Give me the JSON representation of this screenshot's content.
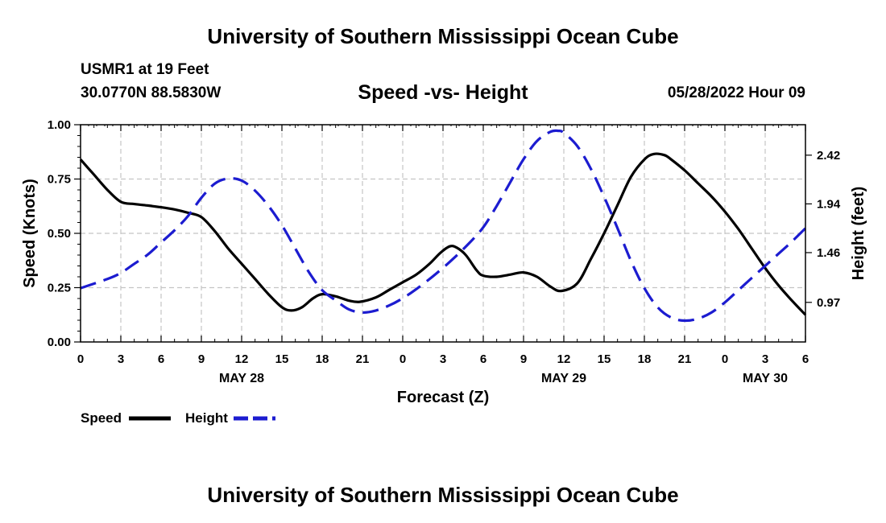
{
  "header": {
    "title": "University of Southern Mississippi Ocean Cube",
    "station": "USMR1 at 19 Feet",
    "coordinates": "30.0770N  88.5830W",
    "subtitle": "Speed -vs- Height",
    "datetime": "05/28/2022 Hour 09"
  },
  "footer": {
    "title": "University of Southern Mississippi Ocean Cube"
  },
  "chart_data": {
    "type": "line",
    "title": "Speed -vs- Height",
    "xlabel": "Forecast (Z)",
    "ylabel": "Speed (Knots)",
    "y2label": "Height (feet)",
    "x": [
      0,
      3,
      6,
      9,
      12,
      15,
      18,
      21,
      24,
      27,
      30,
      33,
      36,
      39,
      42,
      45,
      48,
      51,
      54
    ],
    "xlim": [
      0,
      54
    ],
    "xtick_labels": [
      "0",
      "3",
      "6",
      "9",
      "12",
      "15",
      "18",
      "21",
      "0",
      "3",
      "6",
      "9",
      "12",
      "15",
      "18",
      "21",
      "0",
      "3",
      "6"
    ],
    "date_labels": [
      {
        "label": "MAY 28",
        "x": 12
      },
      {
        "label": "MAY 29",
        "x": 36
      },
      {
        "label": "MAY 30",
        "x": 51
      }
    ],
    "ylim": [
      0,
      1
    ],
    "ytick_labels": [
      "0.00",
      "0.25",
      "0.50",
      "0.75",
      "1.00"
    ],
    "ytick_values": [
      0,
      0.25,
      0.5,
      0.75,
      1.0
    ],
    "y2lim": [
      0.58,
      2.72
    ],
    "y2tick_labels": [
      "0.97",
      "1.46",
      "1.94",
      "2.42"
    ],
    "y2tick_values": [
      0.97,
      1.46,
      1.94,
      2.42
    ],
    "grid": true,
    "series": [
      {
        "name": "Speed",
        "axis": "left",
        "color": "#000000",
        "dash": "solid",
        "points": [
          [
            0,
            0.84
          ],
          [
            1,
            0.77
          ],
          [
            2,
            0.7
          ],
          [
            3,
            0.645
          ],
          [
            4,
            0.635
          ],
          [
            5,
            0.628
          ],
          [
            6,
            0.62
          ],
          [
            7,
            0.61
          ],
          [
            8,
            0.595
          ],
          [
            9,
            0.575
          ],
          [
            10,
            0.51
          ],
          [
            11,
            0.43
          ],
          [
            12,
            0.36
          ],
          [
            13,
            0.29
          ],
          [
            14,
            0.22
          ],
          [
            15,
            0.16
          ],
          [
            15.7,
            0.145
          ],
          [
            16.5,
            0.16
          ],
          [
            17.3,
            0.2
          ],
          [
            18,
            0.22
          ],
          [
            19,
            0.21
          ],
          [
            20,
            0.19
          ],
          [
            20.8,
            0.185
          ],
          [
            22,
            0.205
          ],
          [
            23,
            0.24
          ],
          [
            24,
            0.275
          ],
          [
            25,
            0.31
          ],
          [
            26,
            0.36
          ],
          [
            26.8,
            0.41
          ],
          [
            27.5,
            0.44
          ],
          [
            28,
            0.435
          ],
          [
            28.7,
            0.4
          ],
          [
            29.5,
            0.33
          ],
          [
            30,
            0.305
          ],
          [
            31,
            0.3
          ],
          [
            32,
            0.31
          ],
          [
            33,
            0.32
          ],
          [
            34,
            0.3
          ],
          [
            35,
            0.255
          ],
          [
            35.8,
            0.235
          ],
          [
            37,
            0.27
          ],
          [
            38,
            0.38
          ],
          [
            39,
            0.5
          ],
          [
            40,
            0.63
          ],
          [
            41,
            0.76
          ],
          [
            42,
            0.84
          ],
          [
            42.7,
            0.865
          ],
          [
            43.5,
            0.86
          ],
          [
            44,
            0.84
          ],
          [
            45,
            0.79
          ],
          [
            46,
            0.73
          ],
          [
            47,
            0.67
          ],
          [
            48,
            0.6
          ],
          [
            49,
            0.52
          ],
          [
            50,
            0.43
          ],
          [
            51,
            0.34
          ],
          [
            52,
            0.26
          ],
          [
            53,
            0.19
          ],
          [
            54,
            0.125
          ]
        ]
      },
      {
        "name": "Height",
        "axis": "right",
        "color": "#1c1cd0",
        "dash": "dashed",
        "points": [
          [
            0,
            1.11
          ],
          [
            2,
            1.2
          ],
          [
            3,
            1.26
          ],
          [
            4,
            1.35
          ],
          [
            5,
            1.44
          ],
          [
            6,
            1.56
          ],
          [
            7,
            1.68
          ],
          [
            8,
            1.82
          ],
          [
            9,
            2.0
          ],
          [
            10,
            2.14
          ],
          [
            11,
            2.19
          ],
          [
            12,
            2.17
          ],
          [
            13,
            2.07
          ],
          [
            14,
            1.92
          ],
          [
            15,
            1.73
          ],
          [
            16,
            1.5
          ],
          [
            17,
            1.27
          ],
          [
            18,
            1.09
          ],
          [
            19,
            0.99
          ],
          [
            20,
            0.9
          ],
          [
            21,
            0.87
          ],
          [
            22,
            0.89
          ],
          [
            23,
            0.94
          ],
          [
            24,
            1.01
          ],
          [
            25,
            1.1
          ],
          [
            26,
            1.2
          ],
          [
            27,
            1.31
          ],
          [
            28,
            1.43
          ],
          [
            29,
            1.56
          ],
          [
            30,
            1.71
          ],
          [
            31,
            1.92
          ],
          [
            32,
            2.15
          ],
          [
            33,
            2.38
          ],
          [
            34,
            2.56
          ],
          [
            35,
            2.65
          ],
          [
            35.6,
            2.66
          ],
          [
            36,
            2.64
          ],
          [
            37,
            2.51
          ],
          [
            38,
            2.29
          ],
          [
            39,
            2.01
          ],
          [
            40,
            1.7
          ],
          [
            41,
            1.38
          ],
          [
            42,
            1.11
          ],
          [
            43,
            0.92
          ],
          [
            44,
            0.82
          ],
          [
            45,
            0.79
          ],
          [
            46,
            0.81
          ],
          [
            47,
            0.87
          ],
          [
            48,
            0.97
          ],
          [
            49,
            1.09
          ],
          [
            50,
            1.21
          ],
          [
            51,
            1.33
          ],
          [
            52,
            1.45
          ],
          [
            53,
            1.57
          ],
          [
            54,
            1.7
          ]
        ]
      }
    ],
    "legend": {
      "placement": "bottom-left",
      "entries": [
        {
          "label": "Speed",
          "color": "#000000",
          "dash": "solid"
        },
        {
          "label": "Height",
          "color": "#1c1cd0",
          "dash": "dashed"
        }
      ]
    }
  }
}
